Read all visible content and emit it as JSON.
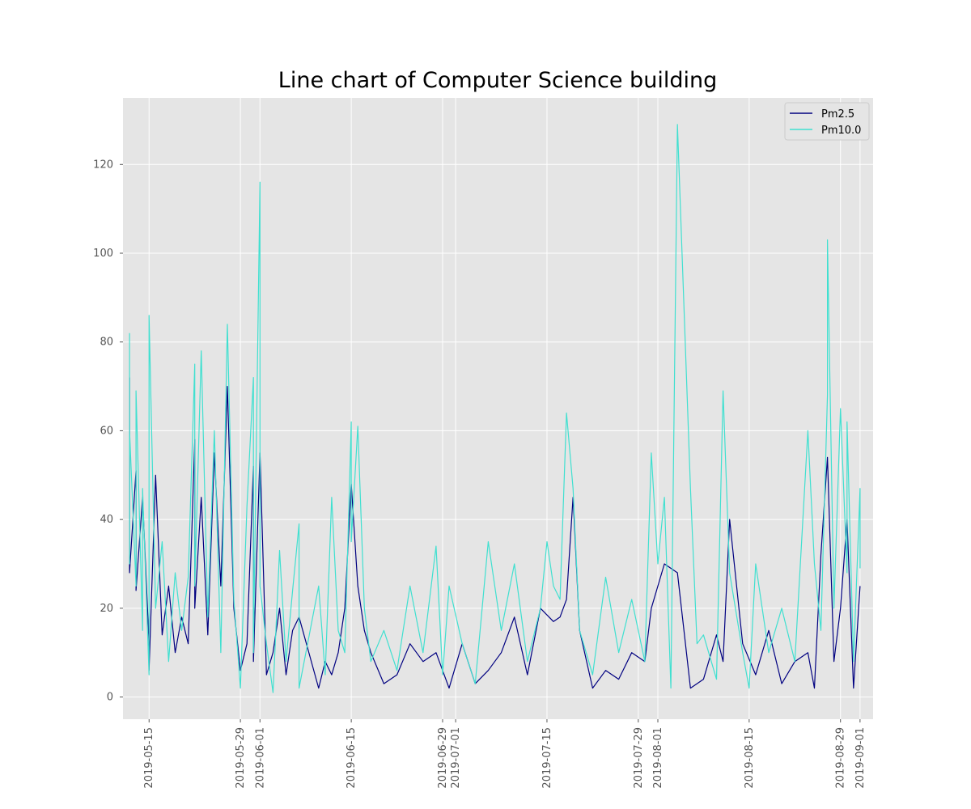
{
  "chart_data": {
    "type": "line",
    "title": "Line chart of Computer Science building",
    "xlabel": "",
    "ylabel": "",
    "x_axis": "date",
    "xlim": [
      "2019-05-11",
      "2019-09-03"
    ],
    "ylim": [
      -5,
      135
    ],
    "x_ticks": [
      "2019-05-15",
      "2019-05-29",
      "2019-06-01",
      "2019-06-15",
      "2019-06-29",
      "2019-07-01",
      "2019-07-15",
      "2019-07-29",
      "2019-08-01",
      "2019-08-15",
      "2019-08-29",
      "2019-09-01"
    ],
    "y_ticks": [
      0,
      20,
      40,
      60,
      80,
      100,
      120
    ],
    "grid": true,
    "legend_position": "upper right",
    "colors": {
      "background": "#e5e5e5",
      "grid": "#ffffff",
      "pm25": "#000080",
      "pm10": "#40e0d0"
    },
    "series": [
      {
        "name": "Pm2.5",
        "x": [
          "2019-05-12",
          "2019-05-12",
          "2019-05-13",
          "2019-05-13",
          "2019-05-14",
          "2019-05-15",
          "2019-05-15",
          "2019-05-16",
          "2019-05-17",
          "2019-05-18",
          "2019-05-19",
          "2019-05-20",
          "2019-05-21",
          "2019-05-22",
          "2019-05-22",
          "2019-05-23",
          "2019-05-24",
          "2019-05-25",
          "2019-05-26",
          "2019-05-27",
          "2019-05-28",
          "2019-05-29",
          "2019-05-30",
          "2019-05-31",
          "2019-05-31",
          "2019-06-01",
          "2019-06-02",
          "2019-06-03",
          "2019-06-04",
          "2019-06-05",
          "2019-06-06",
          "2019-06-07",
          "2019-06-10",
          "2019-06-11",
          "2019-06-12",
          "2019-06-13",
          "2019-06-14",
          "2019-06-15",
          "2019-06-16",
          "2019-06-17",
          "2019-06-18",
          "2019-06-20",
          "2019-06-22",
          "2019-06-24",
          "2019-06-26",
          "2019-06-28",
          "2019-06-30",
          "2019-07-02",
          "2019-07-04",
          "2019-07-06",
          "2019-07-08",
          "2019-07-10",
          "2019-07-12",
          "2019-07-14",
          "2019-07-16",
          "2019-07-17",
          "2019-07-18",
          "2019-07-19",
          "2019-07-20",
          "2019-07-22",
          "2019-07-24",
          "2019-07-26",
          "2019-07-28",
          "2019-07-30",
          "2019-07-31",
          "2019-08-02",
          "2019-08-04",
          "2019-08-06",
          "2019-08-08",
          "2019-08-10",
          "2019-08-11",
          "2019-08-12",
          "2019-08-14",
          "2019-08-16",
          "2019-08-18",
          "2019-08-20",
          "2019-08-22",
          "2019-08-24",
          "2019-08-25",
          "2019-08-26",
          "2019-08-27",
          "2019-08-28",
          "2019-08-29",
          "2019-08-30",
          "2019-08-31",
          "2019-09-01"
        ],
        "y": [
          72,
          28,
          51,
          24,
          45,
          12,
          6,
          50,
          14,
          25,
          10,
          18,
          12,
          58,
          20,
          45,
          14,
          55,
          25,
          70,
          20,
          6,
          12,
          52,
          8,
          55,
          5,
          10,
          20,
          5,
          15,
          18,
          2,
          8,
          5,
          10,
          20,
          48,
          25,
          15,
          10,
          3,
          5,
          12,
          8,
          10,
          2,
          12,
          3,
          6,
          10,
          18,
          5,
          20,
          17,
          18,
          22,
          45,
          15,
          2,
          6,
          4,
          10,
          8,
          20,
          30,
          28,
          2,
          4,
          14,
          8,
          40,
          12,
          5,
          15,
          3,
          8,
          10,
          2,
          32,
          54,
          8,
          20,
          40,
          2,
          25
        ]
      },
      {
        "name": "Pm10.0",
        "x": [
          "2019-05-12",
          "2019-05-12",
          "2019-05-12",
          "2019-05-13",
          "2019-05-13",
          "2019-05-14",
          "2019-05-14",
          "2019-05-15",
          "2019-05-15",
          "2019-05-16",
          "2019-05-17",
          "2019-05-18",
          "2019-05-19",
          "2019-05-20",
          "2019-05-21",
          "2019-05-22",
          "2019-05-22",
          "2019-05-23",
          "2019-05-24",
          "2019-05-25",
          "2019-05-26",
          "2019-05-27",
          "2019-05-28",
          "2019-05-29",
          "2019-05-30",
          "2019-05-31",
          "2019-05-31",
          "2019-06-01",
          "2019-06-01",
          "2019-06-02",
          "2019-06-03",
          "2019-06-04",
          "2019-06-05",
          "2019-06-06",
          "2019-06-07",
          "2019-06-07",
          "2019-06-10",
          "2019-06-11",
          "2019-06-12",
          "2019-06-13",
          "2019-06-14",
          "2019-06-15",
          "2019-06-15",
          "2019-06-16",
          "2019-06-17",
          "2019-06-18",
          "2019-06-20",
          "2019-06-22",
          "2019-06-24",
          "2019-06-26",
          "2019-06-28",
          "2019-06-29",
          "2019-06-30",
          "2019-07-02",
          "2019-07-04",
          "2019-07-06",
          "2019-07-08",
          "2019-07-10",
          "2019-07-12",
          "2019-07-14",
          "2019-07-15",
          "2019-07-16",
          "2019-07-17",
          "2019-07-18",
          "2019-07-19",
          "2019-07-20",
          "2019-07-22",
          "2019-07-24",
          "2019-07-26",
          "2019-07-28",
          "2019-07-30",
          "2019-07-31",
          "2019-08-01",
          "2019-08-02",
          "2019-08-03",
          "2019-08-04",
          "2019-08-06",
          "2019-08-07",
          "2019-08-08",
          "2019-08-10",
          "2019-08-11",
          "2019-08-12",
          "2019-08-14",
          "2019-08-15",
          "2019-08-16",
          "2019-08-18",
          "2019-08-20",
          "2019-08-22",
          "2019-08-24",
          "2019-08-25",
          "2019-08-26",
          "2019-08-27",
          "2019-08-27",
          "2019-08-28",
          "2019-08-29",
          "2019-08-30",
          "2019-08-30",
          "2019-08-31",
          "2019-09-01",
          "2019-09-01"
        ],
        "y": [
          82,
          30,
          60,
          25,
          69,
          15,
          47,
          5,
          86,
          20,
          35,
          8,
          28,
          15,
          27,
          75,
          25,
          78,
          18,
          60,
          10,
          84,
          22,
          2,
          43,
          72,
          10,
          116,
          25,
          12,
          1,
          33,
          8,
          24,
          39,
          2,
          25,
          5,
          45,
          15,
          10,
          62,
          35,
          61,
          20,
          8,
          15,
          6,
          25,
          10,
          34,
          5,
          25,
          12,
          3,
          35,
          15,
          30,
          8,
          20,
          35,
          25,
          22,
          64,
          47,
          15,
          5,
          27,
          10,
          22,
          8,
          55,
          30,
          45,
          2,
          129,
          47,
          12,
          14,
          4,
          69,
          28,
          10,
          2,
          30,
          10,
          20,
          8,
          60,
          30,
          15,
          68,
          103,
          20,
          65,
          28,
          62,
          8,
          47,
          29
        ]
      }
    ]
  }
}
